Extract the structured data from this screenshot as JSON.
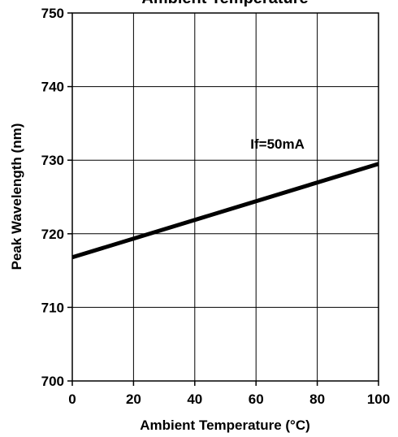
{
  "chart_data": {
    "type": "line",
    "title": "Ambient Temperature",
    "xlabel": "Ambient Temperature (°C)",
    "ylabel": "Peak Wavelength (nm)",
    "xlim": [
      0,
      100
    ],
    "ylim": [
      700,
      750
    ],
    "xticks": [
      0,
      20,
      40,
      60,
      80,
      100
    ],
    "yticks": [
      700,
      710,
      720,
      730,
      740,
      750
    ],
    "grid": true,
    "series": [
      {
        "name": "",
        "x": [
          0,
          100
        ],
        "y": [
          716.8,
          729.5
        ],
        "color": "#000000"
      }
    ],
    "annotations": [
      {
        "text": "If=50mA",
        "x": 67,
        "y": 732
      }
    ]
  }
}
